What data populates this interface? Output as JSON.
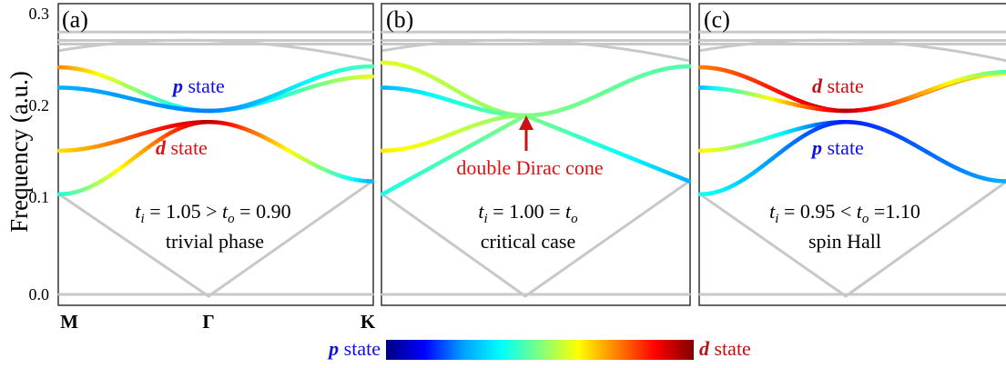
{
  "chart_data": {
    "type": "line",
    "ylabel": "Frequency (a.u.)",
    "ylim": [
      0.0,
      0.3
    ],
    "yticks": [
      "0.0",
      "0.1",
      "0.2",
      "0.3"
    ],
    "xticks": [
      "M",
      "Γ",
      "K"
    ],
    "colorbar": {
      "left_label_symbol": "p",
      "left_label_word": " state",
      "right_label_symbol": "d",
      "right_label_word": " state",
      "colors": [
        "#000080",
        "#0000ff",
        "#00a0ff",
        "#00ffff",
        "#7fff7f",
        "#ffff00",
        "#ff8000",
        "#ff0000",
        "#800000"
      ]
    },
    "panels": [
      {
        "label": "(a)",
        "equation": {
          "t": "t",
          "i": "i",
          "o": "o",
          "mid": " = 1.05 > ",
          "end": " = 0.90"
        },
        "phase": "trivial phase",
        "upper_state": {
          "symbol": "p",
          "word": " state",
          "color": "#1010e0"
        },
        "lower_state": {
          "symbol": "d",
          "word": " state",
          "color": "#e01010"
        },
        "upper_band": {
          "M": [
            0.247,
            0.225
          ],
          "Gamma": 0.2,
          "K": [
            0.237,
            0.248
          ]
        },
        "lower_band": {
          "M": [
            0.157,
            0.11
          ],
          "Gamma": 0.188,
          "K": 0.124
        },
        "annotation": null
      },
      {
        "label": "(b)",
        "equation": {
          "t": "t",
          "i": "i",
          "o": "o",
          "mid": " = 1.00 = ",
          "end": ""
        },
        "phase": "critical case",
        "upper_state": null,
        "lower_state": null,
        "upper_band": {
          "M": [
            0.252,
            0.225
          ],
          "Gamma": 0.195,
          "K": [
            0.248,
            0.248
          ]
        },
        "lower_band": {
          "M": [
            0.157,
            0.11
          ],
          "Gamma": 0.195,
          "K": 0.124
        },
        "annotation": "double Dirac cone"
      },
      {
        "label": "(c)",
        "equation": {
          "t": "t",
          "i": "i",
          "o": "o",
          "mid": " = 0.95 < ",
          "end": " =1.10"
        },
        "phase": "spin Hall",
        "upper_state": {
          "symbol": "d",
          "word": " state",
          "color": "#c01010"
        },
        "lower_state": {
          "symbol": "p",
          "word": " state",
          "color": "#1010e0"
        },
        "upper_band": {
          "M": [
            0.247,
            0.225
          ],
          "Gamma": 0.2,
          "K": [
            0.24,
            0.242
          ]
        },
        "lower_band": {
          "M": [
            0.157,
            0.11
          ],
          "Gamma": 0.188,
          "K": 0.124
        },
        "annotation": null
      }
    ]
  }
}
